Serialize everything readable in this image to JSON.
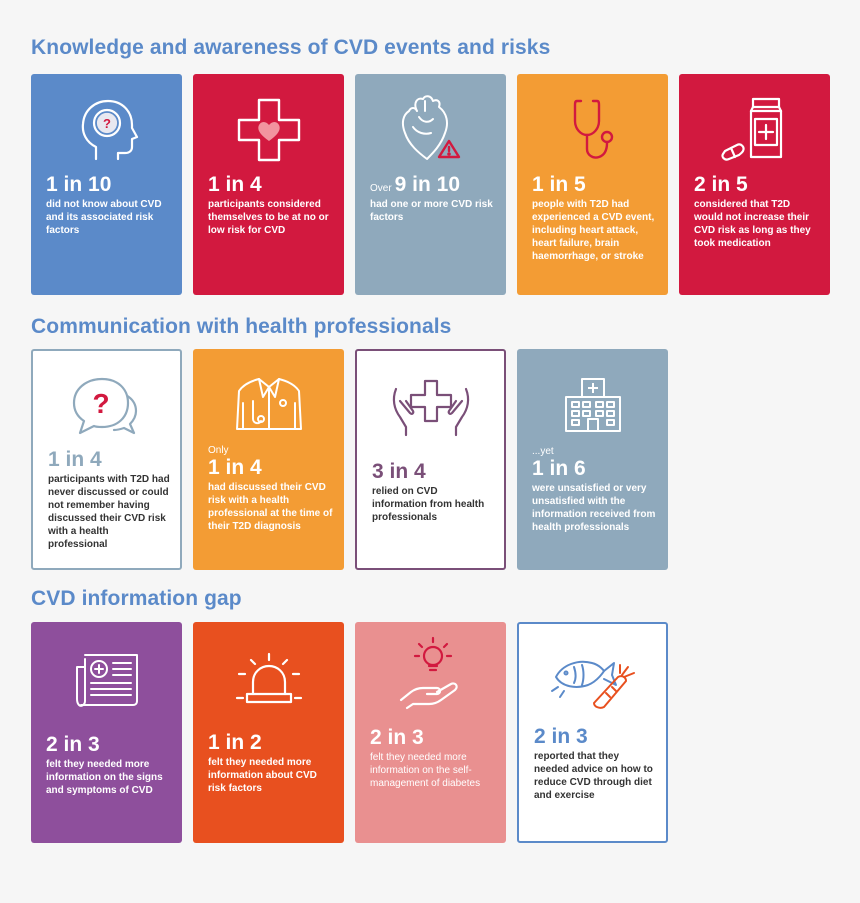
{
  "sections": [
    {
      "title": "Knowledge and awareness of CVD events and risks",
      "cards": [
        {
          "stat": "1 in 10",
          "prefix": "",
          "desc": "did not know about CVD and its associated risk factors",
          "bg": "#5b8ac9",
          "icon": "head-question-icon"
        },
        {
          "stat": "1 in 4",
          "prefix": "",
          "desc": "participants considered themselves to be at no or low risk for CVD",
          "bg": "#d2193f",
          "icon": "medical-cross-heart-icon"
        },
        {
          "stat": "9 in 10",
          "prefix": "Over",
          "desc": "had one or more CVD risk factors",
          "bg": "#8fa9bc",
          "icon": "heart-warning-icon"
        },
        {
          "stat": "1 in 5",
          "prefix": "",
          "desc": "people with T2D had experienced a CVD event, including heart attack, heart failure, brain haemorrhage, or stroke",
          "bg": "#f39c34",
          "icon": "stethoscope-icon"
        },
        {
          "stat": "2 in 5",
          "prefix": "",
          "desc": "considered that T2D would not increase their CVD risk as long as they took medication",
          "bg": "#d2193f",
          "icon": "medication-icon"
        }
      ]
    },
    {
      "title": "Communication with health professionals",
      "cards": [
        {
          "stat": "1 in 4",
          "prefix": "",
          "desc": "participants with T2D had never discussed or could not remember having discussed their CVD risk with a health professional",
          "bg": "#ffffff",
          "icon": "speech-question-icon"
        },
        {
          "stat": "1 in 4",
          "prefix": "Only",
          "desc": "had discussed their CVD risk with a health professional at the time of their T2D diagnosis",
          "bg": "#f39c34",
          "icon": "doctor-coat-icon"
        },
        {
          "stat": "3 in 4",
          "prefix": "",
          "desc": "relied on CVD information from health professionals",
          "bg": "#ffffff",
          "icon": "hands-cross-icon"
        },
        {
          "stat": "1 in 6",
          "prefix": "...yet",
          "desc": "were unsatisfied or very unsatisfied with the information received from health professionals",
          "bg": "#8fa9bc",
          "icon": "hospital-icon"
        }
      ]
    },
    {
      "title": "CVD information gap",
      "cards": [
        {
          "stat": "2 in 3",
          "prefix": "",
          "desc": "felt they needed more information on the signs and symptoms of CVD",
          "bg": "#8e4f9c",
          "icon": "newspaper-icon"
        },
        {
          "stat": "1 in 2",
          "prefix": "",
          "desc": "felt they needed more information about CVD risk factors",
          "bg": "#e8501f",
          "icon": "alarm-light-icon"
        },
        {
          "stat": "2 in 3",
          "prefix": "",
          "desc": "felt they needed more information on the self-management of diabetes",
          "bg": "#e99090",
          "icon": "hand-lightbulb-icon"
        },
        {
          "stat": "2 in 3",
          "prefix": "",
          "desc": "reported that they needed advice on how to reduce CVD through diet and exercise",
          "bg": "#ffffff",
          "icon": "fish-carrot-icon"
        }
      ]
    }
  ]
}
